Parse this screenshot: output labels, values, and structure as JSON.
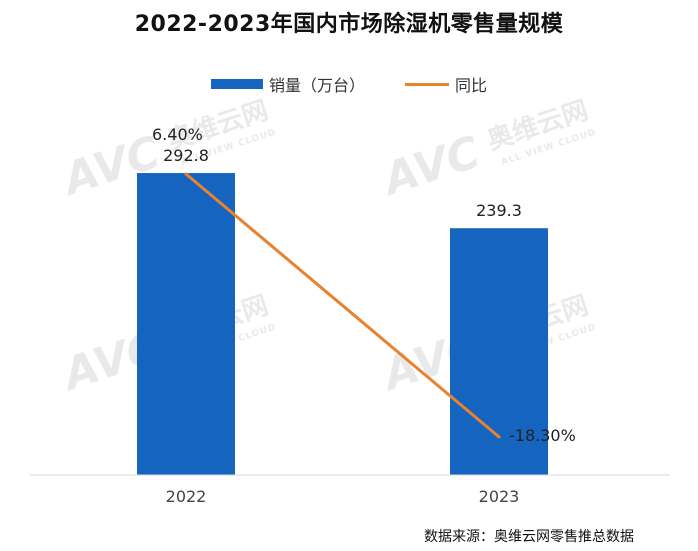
{
  "chart_data": {
    "type": "bar",
    "title": "2022-2023年国内市场除湿机零售量规模",
    "categories": [
      "2022",
      "2023"
    ],
    "ylim": [
      0,
      320
    ],
    "y2lim": [
      -20,
      8
    ],
    "grid": false,
    "legend_position": "top",
    "series": [
      {
        "name": "销量（万台）",
        "kind": "bar",
        "values": [
          292.8,
          239.3
        ],
        "labels": [
          "292.8",
          "239.3"
        ],
        "color": "#1565C0"
      },
      {
        "name": "同比",
        "kind": "line",
        "axis": "secondary",
        "values": [
          6.4,
          -18.3
        ],
        "labels": [
          "6.40%",
          "-18.30%"
        ],
        "color": "#E8822F"
      }
    ],
    "source": "数据来源：奥维云网零售推总数据"
  },
  "watermark": {
    "logo_text": "AVC",
    "brand_cn": "奥维云网",
    "brand_en": "ALL VIEW CLOUD"
  }
}
